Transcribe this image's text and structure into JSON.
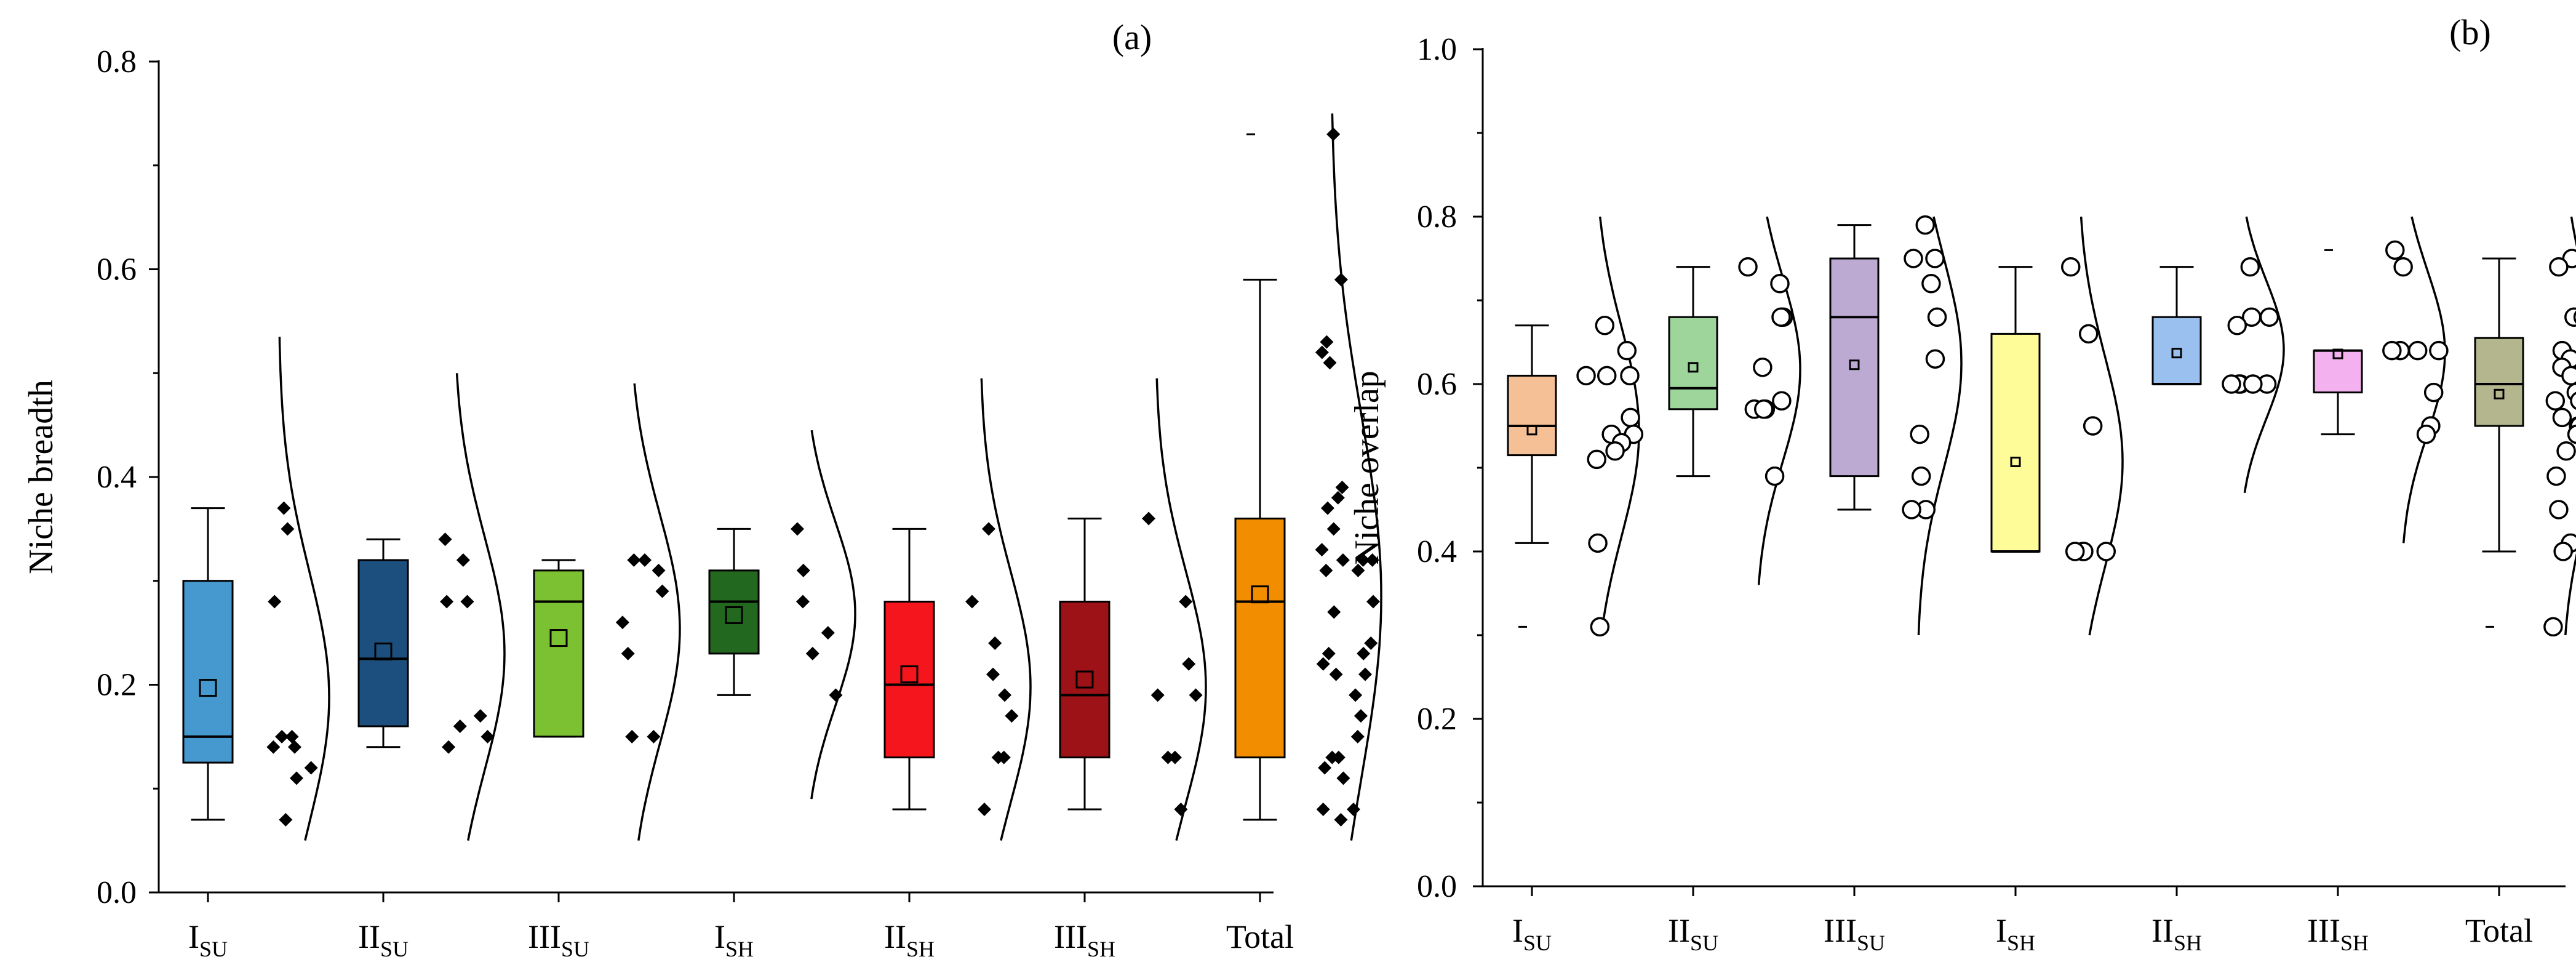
{
  "chart_data": [
    {
      "panel": "(a)",
      "type": "box",
      "ylabel": "Niche breadth",
      "ylim": [
        0,
        0.8
      ],
      "yticks": [
        "0.0",
        "0.2",
        "0.4",
        "0.6",
        "0.8"
      ],
      "categories": [
        {
          "base": "I",
          "sub": "SU",
          "color": "#4599cf",
          "q1": 0.125,
          "median": 0.15,
          "q3": 0.3,
          "whisker_low": 0.07,
          "whisker_high": 0.37,
          "mean": 0.197,
          "points": [
            0.37,
            0.35,
            0.28,
            0.15,
            0.15,
            0.14,
            0.14,
            0.12,
            0.11,
            0.07
          ],
          "density_range": [
            0.05,
            0.535
          ]
        },
        {
          "base": "II",
          "sub": "SU",
          "color": "#1d4f7e",
          "q1": 0.16,
          "median": 0.225,
          "q3": 0.32,
          "whisker_low": 0.14,
          "whisker_high": 0.34,
          "mean": 0.232,
          "points": [
            0.34,
            0.32,
            0.28,
            0.28,
            0.17,
            0.16,
            0.15,
            0.14
          ],
          "density_range": [
            0.05,
            0.5
          ]
        },
        {
          "base": "III",
          "sub": "SU",
          "color": "#7bc132",
          "q1": 0.15,
          "median": 0.28,
          "q3": 0.31,
          "whisker_low": 0.15,
          "whisker_high": 0.32,
          "mean": 0.245,
          "points": [
            0.32,
            0.32,
            0.31,
            0.29,
            0.26,
            0.23,
            0.15,
            0.15
          ],
          "density_range": [
            0.05,
            0.49
          ]
        },
        {
          "base": "I",
          "sub": "SH",
          "color": "#23681f",
          "q1": 0.23,
          "median": 0.28,
          "q3": 0.31,
          "whisker_low": 0.19,
          "whisker_high": 0.35,
          "mean": 0.267,
          "points": [
            0.35,
            0.31,
            0.28,
            0.25,
            0.23,
            0.19
          ],
          "density_range": [
            0.09,
            0.445
          ]
        },
        {
          "base": "II",
          "sub": "SH",
          "color": "#f4161c",
          "q1": 0.13,
          "median": 0.2,
          "q3": 0.28,
          "whisker_low": 0.08,
          "whisker_high": 0.35,
          "mean": 0.21,
          "points": [
            0.35,
            0.28,
            0.24,
            0.21,
            0.19,
            0.17,
            0.13,
            0.13,
            0.08
          ],
          "density_range": [
            0.05,
            0.495
          ]
        },
        {
          "base": "III",
          "sub": "SH",
          "color": "#9c1216",
          "q1": 0.13,
          "median": 0.19,
          "q3": 0.28,
          "whisker_low": 0.08,
          "whisker_high": 0.36,
          "mean": 0.205,
          "points": [
            0.36,
            0.28,
            0.22,
            0.19,
            0.19,
            0.13,
            0.13,
            0.08
          ],
          "density_range": [
            0.05,
            0.495
          ]
        },
        {
          "base": "Total",
          "sub": "",
          "color": "#f28d00",
          "q1": 0.13,
          "median": 0.28,
          "q3": 0.36,
          "whisker_low": 0.07,
          "whisker_high": 0.59,
          "mean": 0.287,
          "outlier_marker": 0.73,
          "points": [
            0.73,
            0.59,
            0.53,
            0.52,
            0.51,
            0.39,
            0.38,
            0.37,
            0.35,
            0.33,
            0.32,
            0.32,
            0.32,
            0.31,
            0.31,
            0.28,
            0.27,
            0.24,
            0.23,
            0.23,
            0.22,
            0.21,
            0.21,
            0.19,
            0.17,
            0.15,
            0.13,
            0.13,
            0.12,
            0.11,
            0.08,
            0.08,
            0.07
          ],
          "density_range": [
            0.05,
            0.75
          ]
        }
      ]
    },
    {
      "panel": "(b)",
      "type": "box",
      "ylabel": "Niche overlap",
      "ylim": [
        0,
        1.0
      ],
      "yticks": [
        "0.0",
        "0.2",
        "0.4",
        "0.6",
        "0.8",
        "1.0"
      ],
      "categories": [
        {
          "base": "I",
          "sub": "SU",
          "color": "#f6c096",
          "q1": 0.515,
          "median": 0.55,
          "q3": 0.61,
          "whisker_low": 0.41,
          "whisker_high": 0.67,
          "mean": 0.545,
          "outlier_marker": 0.31,
          "points": [
            0.67,
            0.64,
            0.61,
            0.61,
            0.61,
            0.56,
            0.54,
            0.54,
            0.53,
            0.52,
            0.51,
            0.41,
            0.31
          ],
          "density_range": [
            0.3,
            0.8
          ]
        },
        {
          "base": "II",
          "sub": "SU",
          "color": "#9dd59b",
          "q1": 0.57,
          "median": 0.595,
          "q3": 0.68,
          "whisker_low": 0.49,
          "whisker_high": 0.74,
          "mean": 0.62,
          "points": [
            0.74,
            0.72,
            0.68,
            0.68,
            0.62,
            0.58,
            0.57,
            0.57,
            0.57,
            0.57,
            0.49
          ],
          "density_range": [
            0.36,
            0.8
          ]
        },
        {
          "base": "III",
          "sub": "SU",
          "color": "#bcaad3",
          "q1": 0.49,
          "median": 0.68,
          "q3": 0.75,
          "whisker_low": 0.45,
          "whisker_high": 0.79,
          "mean": 0.623,
          "points": [
            0.79,
            0.75,
            0.75,
            0.72,
            0.68,
            0.63,
            0.54,
            0.49,
            0.45,
            0.45
          ],
          "density_range": [
            0.3,
            0.8
          ]
        },
        {
          "base": "I",
          "sub": "SH",
          "color": "#fefc98",
          "q1": 0.4,
          "median": 0.4,
          "q3": 0.66,
          "whisker_low": 0.4,
          "whisker_high": 0.74,
          "mean": 0.507,
          "points": [
            0.74,
            0.66,
            0.55,
            0.4,
            0.4,
            0.4,
            0.4
          ],
          "density_range": [
            0.3,
            0.8
          ]
        },
        {
          "base": "II",
          "sub": "SH",
          "color": "#9ac0f0",
          "q1": 0.6,
          "median": 0.6,
          "q3": 0.68,
          "whisker_low": 0.6,
          "whisker_high": 0.74,
          "mean": 0.637,
          "points": [
            0.74,
            0.68,
            0.68,
            0.67,
            0.6,
            0.6,
            0.6,
            0.6,
            0.6
          ],
          "density_range": [
            0.47,
            0.8
          ]
        },
        {
          "base": "III",
          "sub": "SH",
          "color": "#f4b1ef",
          "q1": 0.59,
          "median": 0.64,
          "q3": 0.64,
          "whisker_low": 0.54,
          "whisker_high": 0.64,
          "mean": 0.636,
          "outlier_marker": 0.76,
          "points": [
            0.76,
            0.74,
            0.64,
            0.64,
            0.64,
            0.64,
            0.59,
            0.55,
            0.54
          ],
          "density_range": [
            0.41,
            0.8
          ]
        },
        {
          "base": "Total",
          "sub": "",
          "color": "#b4b68e",
          "q1": 0.55,
          "median": 0.6,
          "q3": 0.655,
          "whisker_low": 0.4,
          "whisker_high": 0.75,
          "mean": 0.588,
          "outlier_marker": 0.31,
          "points": [
            0.75,
            0.74,
            0.68,
            0.68,
            0.67,
            0.66,
            0.65,
            0.64,
            0.63,
            0.62,
            0.62,
            0.61,
            0.61,
            0.61,
            0.6,
            0.6,
            0.6,
            0.59,
            0.59,
            0.58,
            0.58,
            0.57,
            0.57,
            0.56,
            0.56,
            0.55,
            0.55,
            0.54,
            0.54,
            0.52,
            0.49,
            0.45,
            0.41,
            0.4,
            0.31
          ],
          "density_range": [
            0.3,
            0.8
          ]
        }
      ]
    }
  ]
}
